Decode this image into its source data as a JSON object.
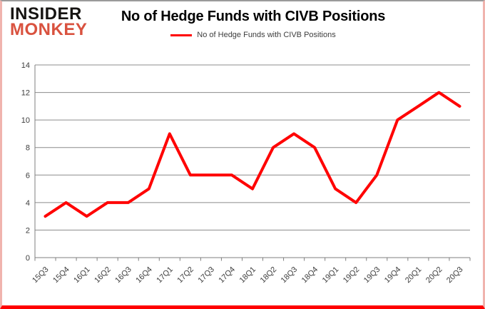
{
  "logo": {
    "line1": "INSIDER",
    "line2": "MONKEY"
  },
  "title": "No of Hedge Funds with CIVB Positions",
  "legend": {
    "label": "No of Hedge Funds with CIVB Positions",
    "color": "#ff0000"
  },
  "chart_data": {
    "type": "line",
    "title": "No of Hedge Funds with CIVB Positions",
    "categories": [
      "15Q3",
      "15Q4",
      "16Q1",
      "16Q2",
      "16Q3",
      "16Q4",
      "17Q1",
      "17Q2",
      "17Q3",
      "17Q4",
      "18Q1",
      "18Q2",
      "18Q3",
      "18Q4",
      "19Q1",
      "19Q2",
      "19Q3",
      "19Q4",
      "20Q1",
      "20Q2",
      "20Q3"
    ],
    "series": [
      {
        "name": "No of Hedge Funds with CIVB Positions",
        "color": "#ff0000",
        "values": [
          3,
          4,
          3,
          4,
          4,
          5,
          9,
          6,
          6,
          6,
          5,
          8,
          9,
          8,
          5,
          4,
          6,
          10,
          11,
          12,
          11
        ]
      }
    ],
    "xlabel": "",
    "ylabel": "",
    "ylim": [
      0,
      14
    ],
    "ytick_step": 2,
    "grid": "horizontal",
    "legend_position": "top"
  },
  "colors": {
    "line": "#ff0000",
    "grid": "#8c8c8c",
    "axis": "#7f7f7f",
    "tick_label": "#3d3d3d",
    "title": "#000000",
    "logo_black": "#161412",
    "logo_red": "#d9523f",
    "frame_bottom": "#ff0000",
    "frame_sides": "#f0b4ae",
    "frame_top": "#9a9a9a"
  }
}
